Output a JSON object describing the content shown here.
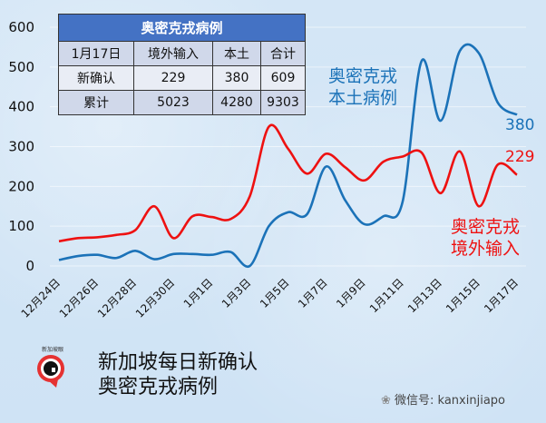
{
  "chart_data": {
    "type": "line",
    "title": "新加坡每日新确认 奥密克戎病例",
    "xlabel": "",
    "ylabel": "",
    "ylim": [
      0,
      600
    ],
    "yticks": [
      0,
      100,
      200,
      300,
      400,
      500,
      600
    ],
    "grid": true,
    "x": [
      "12月24日",
      "12月25日",
      "12月26日",
      "12月27日",
      "12月28日",
      "12月29日",
      "12月30日",
      "12月31日",
      "1月1日",
      "1月2日",
      "1月3日",
      "1月4日",
      "1月5日",
      "1月6日",
      "1月7日",
      "1月8日",
      "1月9日",
      "1月10日",
      "1月11日",
      "1月12日",
      "1月13日",
      "1月14日",
      "1月15日",
      "1月16日",
      "1月17日"
    ],
    "xtick_labels": [
      "12月24日",
      "12月26日",
      "12月28日",
      "12月30日",
      "1月1日",
      "1月3日",
      "1月5日",
      "1月7日",
      "1月9日",
      "1月11日",
      "1月13日",
      "1月15日",
      "1月17日"
    ],
    "series": [
      {
        "name": "奥密克戎本土病例",
        "color": "#1b72b8",
        "values": [
          15,
          25,
          28,
          20,
          38,
          17,
          30,
          30,
          28,
          35,
          0,
          100,
          135,
          130,
          250,
          165,
          105,
          125,
          160,
          515,
          365,
          540,
          535,
          410,
          380
        ]
      },
      {
        "name": "奥密克戎境外输入",
        "color": "#ee1111",
        "values": [
          62,
          70,
          72,
          78,
          90,
          150,
          70,
          125,
          123,
          118,
          175,
          350,
          295,
          232,
          282,
          248,
          215,
          262,
          275,
          285,
          183,
          288,
          150,
          255,
          229
        ]
      }
    ],
    "annotations": [
      {
        "text": "380",
        "series": "奥密克戎本土病例"
      },
      {
        "text": "229",
        "series": "奥密克戎境外输入"
      }
    ]
  },
  "table": {
    "title": "奥密克戎病例",
    "headers": [
      "1月17日",
      "境外输入",
      "本土",
      "合计"
    ],
    "rows": [
      [
        "新确认",
        "229",
        "380",
        "609"
      ],
      [
        "累计",
        "5023",
        "4280",
        "9303"
      ]
    ]
  },
  "legend": {
    "local_line1": "奥密克戎",
    "local_line2": "本土病例",
    "imported_line1": "奥密克戎",
    "imported_line2": "境外输入",
    "local_end": "380",
    "imported_end": "229"
  },
  "footer": {
    "title_line1": "新加坡每日新确认",
    "title_line2": "奥密克戎病例",
    "logo_text": "新加坡眼",
    "wechat": "微信号: kanxinjiapo"
  }
}
